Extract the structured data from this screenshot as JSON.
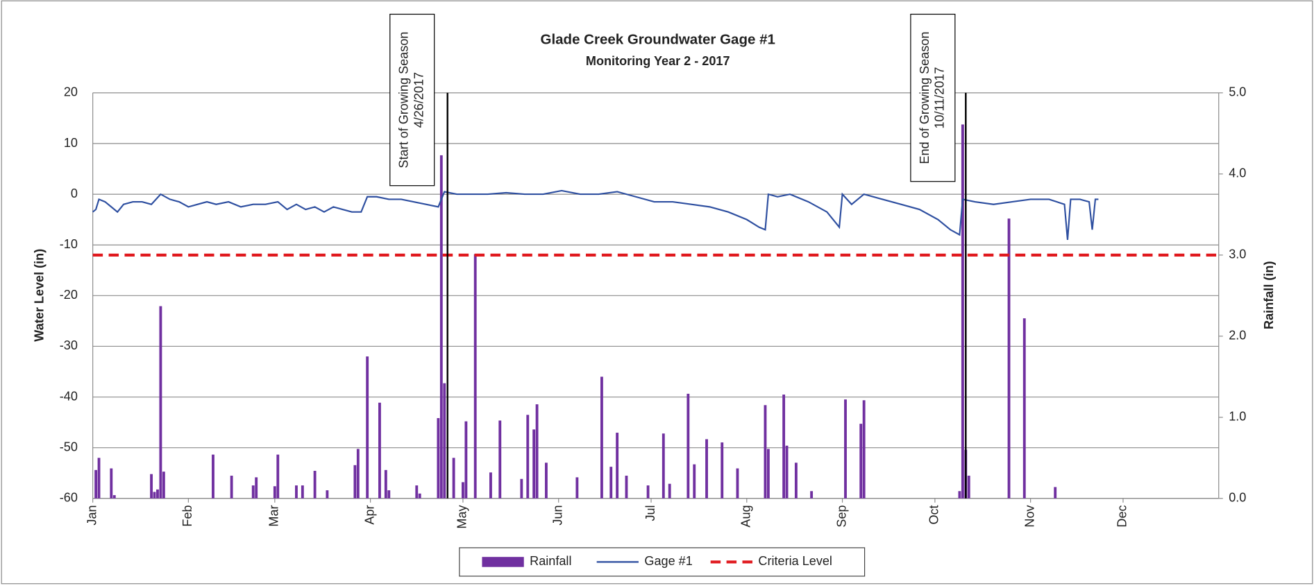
{
  "chart_data": {
    "type": "combo",
    "title": "Glade Creek Groundwater Gage #1",
    "subtitle": "Monitoring Year 2 - 2017",
    "y_label": "Water Level (in)",
    "y2_label": "Rainfall (in)",
    "xlim": [
      0,
      365
    ],
    "xticks": [
      {
        "value": 0,
        "label": "Jan"
      },
      {
        "value": 31,
        "label": "Feb"
      },
      {
        "value": 59,
        "label": "Mar"
      },
      {
        "value": 90,
        "label": "Apr"
      },
      {
        "value": 120,
        "label": "May"
      },
      {
        "value": 151,
        "label": "Jun"
      },
      {
        "value": 181,
        "label": "Jul"
      },
      {
        "value": 212,
        "label": "Aug"
      },
      {
        "value": 243,
        "label": "Sep"
      },
      {
        "value": 273,
        "label": "Oct"
      },
      {
        "value": 304,
        "label": "Nov"
      },
      {
        "value": 334,
        "label": "Dec"
      }
    ],
    "ylim": [
      -60,
      20
    ],
    "yticks": [
      20,
      10,
      0,
      -10,
      -20,
      -30,
      -40,
      -50,
      -60
    ],
    "y2lim": [
      0,
      5
    ],
    "y2ticks": [
      {
        "value": 5,
        "label": "5.0"
      },
      {
        "value": 4,
        "label": "4.0"
      },
      {
        "value": 3,
        "label": "3.0"
      },
      {
        "value": 2,
        "label": "2.0"
      },
      {
        "value": 1,
        "label": "1.0"
      },
      {
        "value": 0,
        "label": "0.0"
      }
    ],
    "grid": true,
    "legend": "bottom",
    "annotations": [
      {
        "lines": [
          "Start of Growing Season",
          "4/26/2017"
        ],
        "x": 115
      },
      {
        "lines": [
          "End of Growing Season",
          "10/11/2017"
        ],
        "x": 283
      }
    ],
    "series": [
      {
        "name": "Rainfall",
        "type": "bar",
        "axis": "y2",
        "color": "#7030a0",
        "x": [
          1,
          2,
          6,
          7,
          19,
          20,
          21,
          22,
          23,
          39,
          45,
          52,
          53,
          59,
          60,
          66,
          68,
          72,
          76,
          85,
          86,
          89,
          93,
          95,
          96,
          105,
          106,
          112,
          113,
          114,
          117,
          120,
          121,
          124,
          129,
          132,
          139,
          141,
          143,
          144,
          147,
          157,
          165,
          168,
          170,
          173,
          180,
          185,
          187,
          193,
          195,
          199,
          204,
          209,
          218,
          219,
          224,
          225,
          228,
          233,
          244,
          249,
          250,
          281,
          282,
          283,
          284,
          297,
          302,
          312
        ],
        "values": [
          0.35,
          0.5,
          0.37,
          0.04,
          0.3,
          0.08,
          0.11,
          2.37,
          0.33,
          0.54,
          0.28,
          0.16,
          0.26,
          0.15,
          0.54,
          0.16,
          0.16,
          0.34,
          0.1,
          0.41,
          0.61,
          1.75,
          1.18,
          0.35,
          0.1,
          0.16,
          0.06,
          0.99,
          4.23,
          1.42,
          0.5,
          0.2,
          0.95,
          3.01,
          0.32,
          0.96,
          0.24,
          1.03,
          0.85,
          1.16,
          0.44,
          0.26,
          1.5,
          0.39,
          0.81,
          0.28,
          0.16,
          0.8,
          0.18,
          1.29,
          0.42,
          0.73,
          0.69,
          0.37,
          1.15,
          0.61,
          1.28,
          0.65,
          0.44,
          0.09,
          1.22,
          0.92,
          1.21,
          0.09,
          4.61,
          0.6,
          0.28,
          3.45,
          2.22,
          0.14
        ]
      },
      {
        "name": "Gage #1",
        "type": "line",
        "axis": "y",
        "color": "#2e4fa0",
        "x": [
          0,
          1,
          2,
          4,
          6,
          8,
          10,
          13,
          16,
          19,
          22,
          25,
          28,
          31,
          34,
          37,
          40,
          44,
          48,
          52,
          56,
          60,
          63,
          66,
          69,
          72,
          75,
          78,
          81,
          84,
          87,
          89,
          92,
          96,
          100,
          104,
          108,
          112,
          114,
          118,
          122,
          128,
          134,
          140,
          146,
          152,
          158,
          164,
          170,
          176,
          182,
          188,
          194,
          200,
          206,
          212,
          216,
          218,
          219,
          222,
          226,
          232,
          238,
          242,
          243,
          246,
          250,
          256,
          262,
          268,
          274,
          278,
          281,
          282,
          286,
          292,
          298,
          304,
          310,
          315,
          316,
          317,
          320,
          323,
          324,
          325,
          326
        ],
        "values": [
          -3.5,
          -3,
          -1,
          -1.5,
          -2.5,
          -3.5,
          -2,
          -1.5,
          -1.5,
          -2,
          0,
          -1,
          -1.5,
          -2.5,
          -2,
          -1.5,
          -2,
          -1.5,
          -2.5,
          -2,
          -2,
          -1.5,
          -3,
          -2,
          -3,
          -2.5,
          -3.5,
          -2.5,
          -3,
          -3.5,
          -3.5,
          -0.5,
          -0.5,
          -1,
          -1,
          -1.5,
          -2,
          -2.5,
          0.5,
          0,
          0,
          0,
          0.3,
          0,
          0,
          0.7,
          0,
          0,
          0.5,
          -0.5,
          -1.5,
          -1.5,
          -2,
          -2.5,
          -3.5,
          -5,
          -6.5,
          -7,
          0,
          -0.5,
          0,
          -1.5,
          -3.5,
          -6.5,
          0,
          -2,
          0,
          -1,
          -2,
          -3,
          -5,
          -7,
          -8,
          -1,
          -1.5,
          -2,
          -1.5,
          -1,
          -1,
          -2,
          -9,
          -1,
          -1,
          -1.5,
          -7,
          -1,
          -1
        ]
      },
      {
        "name": "Criteria Level",
        "type": "dashed",
        "axis": "y",
        "color": "#e0191e",
        "x": [
          0,
          365
        ],
        "values": [
          -12,
          -12
        ]
      }
    ]
  }
}
